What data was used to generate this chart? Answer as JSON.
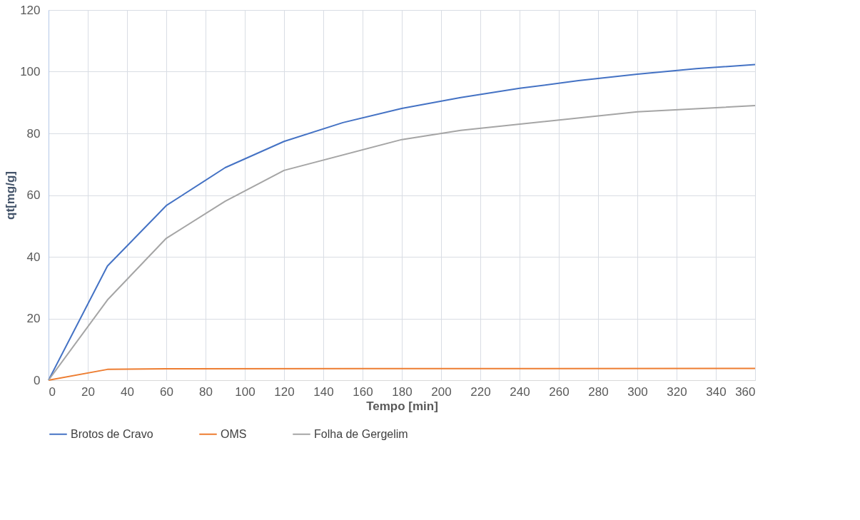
{
  "chart_data": {
    "type": "line",
    "xlabel": "Tempo [min]",
    "ylabel": "qt[mg/g]",
    "xlim": [
      0,
      360
    ],
    "xticks": [
      0,
      20,
      40,
      60,
      80,
      100,
      120,
      140,
      160,
      180,
      200,
      220,
      240,
      260,
      280,
      300,
      320,
      340,
      360
    ],
    "ylim": [
      0,
      120
    ],
    "yticks": [
      0,
      20,
      40,
      60,
      80,
      100,
      120
    ],
    "grid": true,
    "legend": "bottom",
    "marker": "none",
    "line_style": "solid",
    "series": [
      {
        "name": "Brotos de Cravo",
        "color": "#4472c4",
        "x": [
          0,
          30,
          60,
          90,
          120,
          150,
          180,
          210,
          240,
          270,
          300,
          330,
          360
        ],
        "values": [
          0,
          37,
          56.6,
          68.9,
          77.4,
          83.5,
          88.1,
          91.6,
          94.6,
          97.1,
          99.2,
          101,
          102.3
        ]
      },
      {
        "name": "OMS",
        "color": "#ed7d31",
        "x": [
          0,
          30,
          60,
          360
        ],
        "values": [
          0,
          3.5,
          3.7,
          3.8
        ]
      },
      {
        "name": "Folha de Gergelim",
        "color": "#a5a5a5",
        "x": [
          0,
          30,
          60,
          90,
          120,
          180,
          210,
          300,
          360
        ],
        "values": [
          0,
          26,
          46,
          58,
          68,
          78,
          81,
          87,
          89
        ]
      }
    ]
  }
}
